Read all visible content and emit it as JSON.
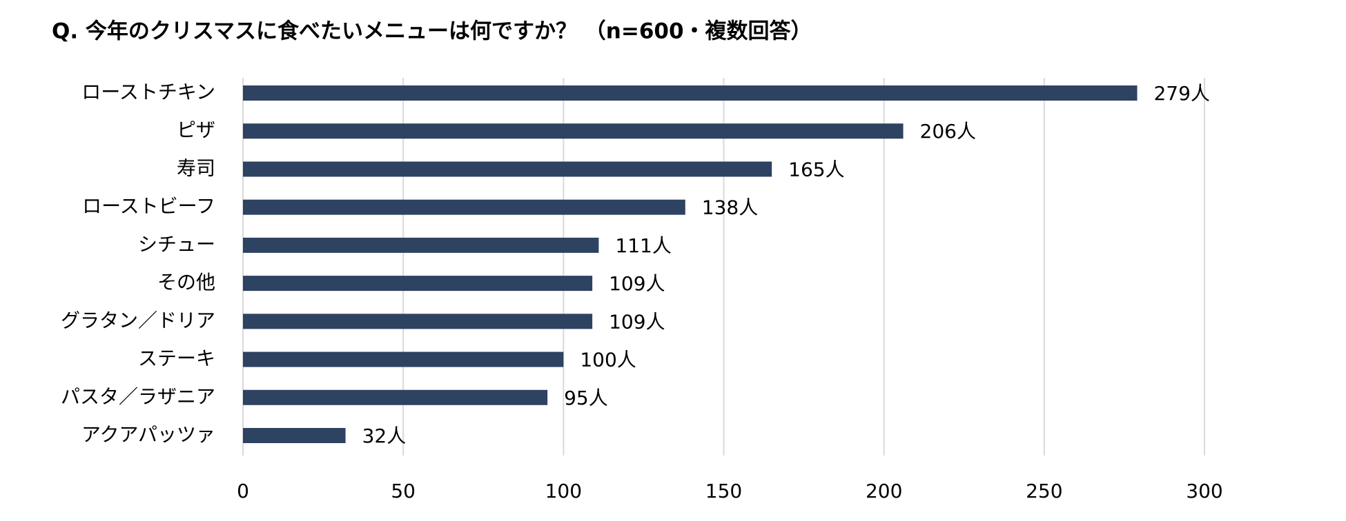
{
  "chart_data": {
    "type": "bar",
    "orientation": "horizontal",
    "title": "Q. 今年のクリスマスに食べたいメニューは何ですか？ （n=600・複数回答）",
    "categories": [
      "ローストチキン",
      "ピザ",
      "寿司",
      "ローストビーフ",
      "シチュー",
      "その他",
      "グラタン／ドリア",
      "ステーキ",
      "パスタ／ラザニア",
      "アクアパッツァ"
    ],
    "values": [
      279,
      206,
      165,
      138,
      111,
      109,
      109,
      100,
      95,
      32
    ],
    "value_labels": [
      "279人",
      "206人",
      "165人",
      "138人",
      "111人",
      "109人",
      "109人",
      "100人",
      "95人",
      "32人"
    ],
    "color": "#2e4261",
    "xlim": [
      0,
      300
    ],
    "xticks": [
      0,
      50,
      100,
      150,
      200,
      250,
      300
    ],
    "grid": true
  }
}
